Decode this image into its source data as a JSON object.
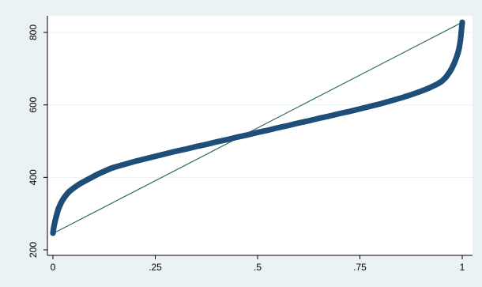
{
  "chart_data": {
    "type": "scatter",
    "title": "",
    "xlabel": "",
    "ylabel": "",
    "xlim": [
      0,
      1
    ],
    "ylim": [
      200,
      830
    ],
    "grid": true,
    "x_ticks": [
      {
        "value": 0,
        "label": "0"
      },
      {
        "value": 0.25,
        "label": ".25"
      },
      {
        "value": 0.5,
        "label": ".5"
      },
      {
        "value": 0.75,
        "label": ".75"
      },
      {
        "value": 1,
        "label": "1"
      }
    ],
    "y_ticks": [
      {
        "value": 200,
        "label": "200"
      },
      {
        "value": 400,
        "label": "400"
      },
      {
        "value": 600,
        "label": "600"
      },
      {
        "value": 800,
        "label": "800"
      }
    ],
    "reference_line": {
      "from": [
        0,
        245
      ],
      "to": [
        1,
        828
      ],
      "color": "#2e6b5e"
    },
    "series": [
      {
        "marker_color": "#1f4e79",
        "points": [
          [
            0.0,
            246
          ],
          [
            0.002,
            262
          ],
          [
            0.005,
            278
          ],
          [
            0.008,
            292
          ],
          [
            0.01,
            300
          ],
          [
            0.013,
            312
          ],
          [
            0.016,
            320
          ],
          [
            0.02,
            330
          ],
          [
            0.025,
            340
          ],
          [
            0.03,
            348
          ],
          [
            0.035,
            355
          ],
          [
            0.04,
            361
          ],
          [
            0.05,
            370
          ],
          [
            0.06,
            378
          ],
          [
            0.07,
            385
          ],
          [
            0.08,
            391
          ],
          [
            0.09,
            397
          ],
          [
            0.1,
            403
          ],
          [
            0.11,
            409
          ],
          [
            0.12,
            414
          ],
          [
            0.13,
            419
          ],
          [
            0.14,
            424
          ],
          [
            0.15,
            428
          ],
          [
            0.175,
            436
          ],
          [
            0.2,
            444
          ],
          [
            0.225,
            451
          ],
          [
            0.25,
            458
          ],
          [
            0.275,
            465
          ],
          [
            0.3,
            472
          ],
          [
            0.325,
            478
          ],
          [
            0.35,
            485
          ],
          [
            0.375,
            491
          ],
          [
            0.4,
            498
          ],
          [
            0.425,
            504
          ],
          [
            0.45,
            511
          ],
          [
            0.475,
            517
          ],
          [
            0.5,
            524
          ],
          [
            0.525,
            530
          ],
          [
            0.55,
            537
          ],
          [
            0.575,
            543
          ],
          [
            0.6,
            550
          ],
          [
            0.625,
            556
          ],
          [
            0.65,
            563
          ],
          [
            0.675,
            569
          ],
          [
            0.7,
            576
          ],
          [
            0.725,
            582
          ],
          [
            0.75,
            589
          ],
          [
            0.775,
            596
          ],
          [
            0.8,
            603
          ],
          [
            0.825,
            611
          ],
          [
            0.85,
            619
          ],
          [
            0.875,
            628
          ],
          [
            0.9,
            638
          ],
          [
            0.92,
            647
          ],
          [
            0.94,
            658
          ],
          [
            0.95,
            665
          ],
          [
            0.96,
            676
          ],
          [
            0.965,
            684
          ],
          [
            0.97,
            692
          ],
          [
            0.975,
            702
          ],
          [
            0.98,
            714
          ],
          [
            0.985,
            728
          ],
          [
            0.99,
            745
          ],
          [
            0.993,
            760
          ],
          [
            0.996,
            782
          ],
          [
            0.998,
            805
          ],
          [
            1.0,
            828
          ]
        ]
      }
    ]
  }
}
